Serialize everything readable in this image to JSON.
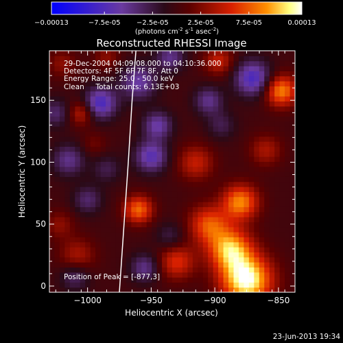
{
  "colorbar": {
    "ticks": [
      "-0.00013",
      "-7.5e-05",
      "-2.5e-05",
      "2.5e-05",
      "7.5e-05",
      "0.00013"
    ],
    "unit_prefix": "(photons cm",
    "unit_exp1": "-2",
    "unit_mid": " s",
    "unit_exp2": "-1",
    "unit_mid2": " asec",
    "unit_exp3": "-2",
    "unit_suffix": ")"
  },
  "annotations": {
    "line1": "29-Dec-2004 04:09:08.000 to 04:10:36.000",
    "line2": "Detectors: 4F 5F 6F 7F 8F, Att 0",
    "line3": "Energy Range: 25.0 - 50.0 keV",
    "line4": "Clean     Total counts: 6.13E+03",
    "peak": "Position of Peak = [-877,3]"
  },
  "footer": {
    "timestamp": "23-Jun-2013 19:34"
  },
  "chart_data": {
    "type": "heatmap",
    "title": "Reconstructed RHESSI Image",
    "xlabel": "Heliocentric X (arcsec)",
    "ylabel": "Heliocentric Y (arcsec)",
    "xlim": [
      -1030,
      -837
    ],
    "ylim": [
      -5,
      190
    ],
    "x_ticks": [
      -1000,
      -950,
      -900,
      -850
    ],
    "x_tick_labels": [
      "−1000",
      "−950",
      "−900",
      "−850"
    ],
    "y_ticks": [
      0,
      50,
      100,
      150
    ],
    "y_tick_labels": [
      "0",
      "50",
      "100",
      "150"
    ],
    "colorbar_range": [
      -0.00013,
      0.00013
    ],
    "colormap": [
      "#0000ff",
      "#6a3aa0",
      "#2a0a18",
      "#5a0000",
      "#d82000",
      "#ff9000",
      "#ffff80",
      "#ffffff"
    ],
    "peak": [
      -877,
      3
    ],
    "limb_x": [
      -975,
      -972,
      -968,
      -965,
      -962
    ],
    "limb_y": [
      -5,
      40,
      100,
      150,
      190
    ],
    "limb_color": "#ffffff",
    "blobs": [
      {
        "x": -875,
        "y": 5,
        "v": 0.00013,
        "s": 14
      },
      {
        "x": -888,
        "y": 30,
        "v": 0.0001,
        "s": 12
      },
      {
        "x": -905,
        "y": 50,
        "v": 7e-05,
        "s": 11
      },
      {
        "x": -880,
        "y": 68,
        "v": 9e-05,
        "s": 10
      },
      {
        "x": -915,
        "y": 100,
        "v": 5e-05,
        "s": 10
      },
      {
        "x": -930,
        "y": 20,
        "v": 6e-05,
        "s": 10
      },
      {
        "x": -960,
        "y": 62,
        "v": 8e-05,
        "s": 8
      },
      {
        "x": -1008,
        "y": 25,
        "v": 4e-05,
        "s": 10
      },
      {
        "x": -1022,
        "y": 50,
        "v": 3e-05,
        "s": 8
      },
      {
        "x": -1005,
        "y": 140,
        "v": 5e-05,
        "s": 7
      },
      {
        "x": -1020,
        "y": 180,
        "v": 3e-05,
        "s": 8
      },
      {
        "x": -848,
        "y": 158,
        "v": 9e-05,
        "s": 9
      },
      {
        "x": -897,
        "y": 182,
        "v": 5e-05,
        "s": 8
      },
      {
        "x": -860,
        "y": 110,
        "v": 4e-05,
        "s": 9
      },
      {
        "x": -985,
        "y": 185,
        "v": 3e-05,
        "s": 7
      },
      {
        "x": -995,
        "y": 115,
        "v": 2e-05,
        "s": 7
      },
      {
        "x": -1000,
        "y": 70,
        "v": -4e-05,
        "s": 8
      },
      {
        "x": -1015,
        "y": 102,
        "v": -5e-05,
        "s": 9
      },
      {
        "x": -985,
        "y": 95,
        "v": -3e-05,
        "s": 8
      },
      {
        "x": -990,
        "y": 148,
        "v": -8e-05,
        "s": 9
      },
      {
        "x": -960,
        "y": 165,
        "v": -6e-05,
        "s": 10
      },
      {
        "x": -935,
        "y": 185,
        "v": -5e-05,
        "s": 8
      },
      {
        "x": -950,
        "y": 105,
        "v": -7e-05,
        "s": 9
      },
      {
        "x": -945,
        "y": 130,
        "v": -6e-05,
        "s": 8
      },
      {
        "x": -870,
        "y": 168,
        "v": -8e-05,
        "s": 10
      },
      {
        "x": -905,
        "y": 150,
        "v": -5e-05,
        "s": 8
      },
      {
        "x": -895,
        "y": 130,
        "v": -3e-05,
        "s": 8
      },
      {
        "x": -1010,
        "y": 8,
        "v": -4e-05,
        "s": 8
      },
      {
        "x": -955,
        "y": 15,
        "v": -5e-05,
        "s": 8
      },
      {
        "x": -935,
        "y": 40,
        "v": -3e-05,
        "s": 8
      },
      {
        "x": -1025,
        "y": 140,
        "v": -4e-05,
        "s": 8
      }
    ]
  }
}
